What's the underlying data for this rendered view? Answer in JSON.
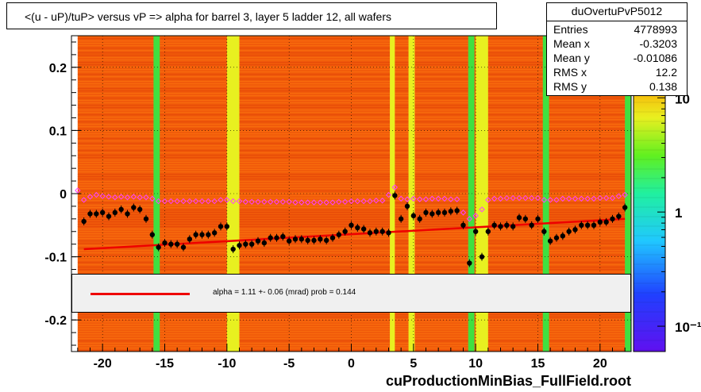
{
  "title": "<(u - uP)/tuP>  versus   vP => alpha for barrel 3, layer 5 ladder 12, all wafers",
  "footer": "cuProductionMinBias_FullField.root",
  "stats": {
    "name": "duOvertuPvP5012",
    "rows": [
      {
        "label": "Entries",
        "value": "4778993"
      },
      {
        "label": "Mean x",
        "value": "-0.3203"
      },
      {
        "label": "Mean y",
        "value": "-0.01086"
      },
      {
        "label": "RMS x",
        "value": "12.2"
      },
      {
        "label": "RMS y",
        "value": "0.138"
      }
    ]
  },
  "legend": {
    "text": "alpha =    1.11 +-  0.06 (mrad) prob = 0.144",
    "line_color": "#ee0000"
  },
  "chart_data": {
    "type": "scatter",
    "xlim": [
      -22.5,
      22.5
    ],
    "ylim": [
      -0.25,
      0.25
    ],
    "x_ticks": [
      -20,
      -15,
      -10,
      -5,
      0,
      5,
      10,
      15,
      20
    ],
    "y_ticks": [
      -0.2,
      -0.1,
      0,
      0.1,
      0.2
    ],
    "y_tick_labels": [
      "-0.2",
      "-0.1",
      "0",
      "0.1",
      "0.2"
    ],
    "colorbar": {
      "scale": "log",
      "tick_labels": [
        "10",
        "1",
        "10⁻¹"
      ],
      "tick_values": [
        10,
        1,
        0.1
      ],
      "range": [
        0.06,
        35
      ]
    },
    "background_heatmap": {
      "base_color": "#f05a0a",
      "bright_bands": [
        {
          "x": [
            -15.9,
            -15.4
          ],
          "color": "#40e040"
        },
        {
          "x": [
            -10.0,
            -9.0
          ],
          "color": "#e8f020"
        },
        {
          "x": [
            3.1,
            3.5
          ],
          "color": "#e8f020"
        },
        {
          "x": [
            4.6,
            5.1
          ],
          "color": "#e8f020"
        },
        {
          "x": [
            9.4,
            9.9
          ],
          "color": "#40e040"
        },
        {
          "x": [
            10.0,
            11.0
          ],
          "color": "#e8f020"
        },
        {
          "x": [
            15.4,
            15.9
          ],
          "color": "#40e040"
        },
        {
          "x": [
            22.0,
            22.5
          ],
          "color": "#40e040"
        }
      ]
    },
    "series": [
      {
        "marker": "filled-circle",
        "color": "#000000",
        "x": [
          -21.5,
          -21,
          -20.5,
          -20,
          -19.5,
          -19,
          -18.5,
          -18,
          -17.5,
          -17,
          -16.5,
          -16,
          -15.5,
          -15,
          -14.5,
          -14,
          -13.5,
          -13,
          -12.5,
          -12,
          -11.5,
          -11,
          -10.5,
          -10,
          -9.5,
          -9,
          -8.5,
          -8,
          -7.5,
          -7,
          -6.5,
          -6,
          -5.5,
          -5,
          -4.5,
          -4,
          -3.5,
          -3,
          -2.5,
          -2,
          -1.5,
          -1,
          -0.5,
          0,
          0.5,
          1,
          1.5,
          2,
          2.5,
          3,
          3.5,
          4,
          4.5,
          5,
          5.5,
          6,
          6.5,
          7,
          7.5,
          8,
          8.5,
          9,
          9.5,
          10,
          10.5,
          11,
          11.5,
          12,
          12.5,
          13,
          13.5,
          14,
          14.5,
          15,
          15.5,
          16,
          16.5,
          17,
          17.5,
          18,
          18.5,
          19,
          19.5,
          20,
          20.5,
          21,
          21.5,
          22
        ],
        "y": [
          -0.044,
          -0.032,
          -0.032,
          -0.03,
          -0.036,
          -0.03,
          -0.025,
          -0.032,
          -0.022,
          -0.025,
          -0.04,
          -0.065,
          -0.085,
          -0.078,
          -0.08,
          -0.08,
          -0.085,
          -0.072,
          -0.065,
          -0.065,
          -0.065,
          -0.062,
          -0.052,
          -0.052,
          -0.088,
          -0.082,
          -0.08,
          -0.08,
          -0.075,
          -0.078,
          -0.07,
          -0.07,
          -0.068,
          -0.075,
          -0.072,
          -0.072,
          -0.074,
          -0.074,
          -0.072,
          -0.074,
          -0.07,
          -0.065,
          -0.06,
          -0.05,
          -0.054,
          -0.056,
          -0.062,
          -0.06,
          -0.06,
          -0.062,
          -0.003,
          -0.04,
          -0.02,
          -0.035,
          -0.04,
          -0.03,
          -0.032,
          -0.03,
          -0.03,
          -0.028,
          -0.027,
          -0.05,
          -0.11,
          -0.06,
          -0.1,
          -0.06,
          -0.05,
          -0.052,
          -0.05,
          -0.052,
          -0.038,
          -0.04,
          -0.05,
          -0.04,
          -0.06,
          -0.075,
          -0.07,
          -0.067,
          -0.06,
          -0.057,
          -0.05,
          -0.05,
          -0.05,
          -0.045,
          -0.045,
          -0.04,
          -0.036,
          -0.022
        ]
      },
      {
        "marker": "open-diamond",
        "color": "#ff40ff",
        "x": [
          -22,
          -21.5,
          -21,
          -20.5,
          -20,
          -19.5,
          -19,
          -18.5,
          -18,
          -17.5,
          -17,
          -16.5,
          -16,
          -15.5,
          -15,
          -14.5,
          -14,
          -13.5,
          -13,
          -12.5,
          -12,
          -11.5,
          -11,
          -10.5,
          -10,
          -9.5,
          -9,
          -8.5,
          -8,
          -7.5,
          -7,
          -6.5,
          -6,
          -5.5,
          -5,
          -4.5,
          -4,
          -3.5,
          -3,
          -2.5,
          -2,
          -1.5,
          -1,
          -0.5,
          0,
          0.5,
          1,
          1.5,
          2,
          2.5,
          3,
          3.5,
          4,
          4.5,
          5,
          5.5,
          6,
          6.5,
          7,
          7.5,
          8,
          8.5,
          9,
          9.5,
          10,
          10.5,
          11,
          11.5,
          12,
          12.5,
          13,
          13.5,
          14,
          14.5,
          15,
          15.5,
          16,
          16.5,
          17,
          17.5,
          18,
          18.5,
          19,
          19.5,
          20,
          20.5,
          21,
          21.5,
          22
        ],
        "y": [
          0.005,
          -0.01,
          -0.005,
          -0.002,
          -0.004,
          -0.005,
          -0.006,
          -0.005,
          -0.006,
          -0.005,
          -0.006,
          -0.006,
          -0.008,
          -0.012,
          -0.012,
          -0.012,
          -0.012,
          -0.012,
          -0.012,
          -0.012,
          -0.012,
          -0.012,
          -0.012,
          -0.01,
          -0.01,
          -0.012,
          -0.012,
          -0.013,
          -0.013,
          -0.013,
          -0.013,
          -0.013,
          -0.013,
          -0.013,
          -0.013,
          -0.014,
          -0.014,
          -0.014,
          -0.014,
          -0.014,
          -0.014,
          -0.014,
          -0.013,
          -0.013,
          -0.012,
          -0.012,
          -0.012,
          -0.012,
          -0.011,
          -0.011,
          -0.002,
          0.01,
          -0.008,
          -0.009,
          -0.008,
          -0.009,
          -0.009,
          -0.008,
          -0.008,
          -0.008,
          -0.009,
          -0.009,
          -0.03,
          -0.04,
          -0.035,
          -0.025,
          -0.01,
          -0.008,
          -0.008,
          -0.007,
          -0.007,
          -0.007,
          -0.007,
          -0.007,
          -0.007,
          -0.01,
          -0.01,
          -0.01,
          -0.008,
          -0.008,
          -0.008,
          -0.008,
          -0.008,
          -0.008,
          -0.007,
          -0.007,
          -0.007,
          -0.004,
          -0.002
        ]
      },
      {
        "marker": "line",
        "color": "#ee0000",
        "x": [
          -21.5,
          22
        ],
        "y": [
          -0.088,
          -0.04
        ]
      }
    ]
  }
}
